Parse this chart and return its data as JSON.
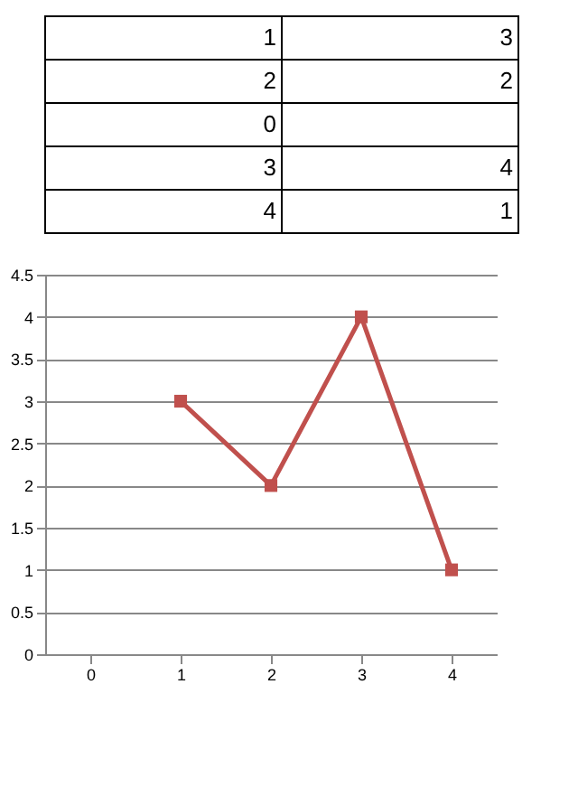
{
  "chart_data": [
    {
      "type": "other",
      "annotations": [
        "1 3",
        "2 2",
        "0",
        "3 4",
        "4 1"
      ]
    },
    {
      "type": "line",
      "categories": [
        "0",
        "1",
        "2",
        "3",
        "4"
      ],
      "series": [
        {
          "color": "#c0504d",
          "values": [
            null,
            3,
            2,
            4,
            1
          ]
        }
      ],
      "ylim": [
        0,
        4.5
      ],
      "yticks": [
        0,
        0.5,
        1,
        1.5,
        2,
        2.5,
        3,
        3.5,
        4,
        4.5
      ],
      "grid": "y",
      "marker": "square",
      "line_style": "solid",
      "legend": false
    }
  ]
}
